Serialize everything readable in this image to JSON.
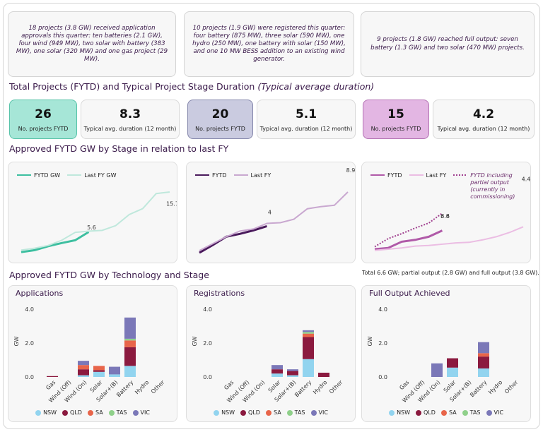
{
  "summary_cards": [
    "18 projects (3.8 GW) received application approvals this quarter: ten batteries (2.1 GW), four wind (949 MW), two solar with battery (383 MW), one solar (320 MW) and one gas project (29 MW).",
    "10 projects (1.9 GW) were registered this quarter: four battery (875 MW), three solar (590 MW), one hydro (250 MW), one battery with solar (150 MW), and one 10 MW BESS addition to an existing wind generator.",
    "9 projects (1.8 GW) reached full output: seven battery (1.3 GW) and two solar (470 MW) projects."
  ],
  "kpi_section": {
    "title": "Total Projects (FYTD) and Typical Project Stage Duration",
    "note": "(Typical average duration)"
  },
  "kpis": [
    {
      "count": 26,
      "count_label": "No. projects FYTD",
      "duration": 8.3,
      "duration_label": "Typical avg. duration (12 month)",
      "color": "#a6e6d7",
      "border": "#57c3a8"
    },
    {
      "count": 20,
      "count_label": "No. projects FYTD",
      "duration": 5.1,
      "duration_label": "Typical avg. duration (12 month)",
      "color": "#cacbe0",
      "border": "#8688ac"
    },
    {
      "count": 15,
      "count_label": "No. projects FYTD",
      "duration": 4.2,
      "duration_label": "Typical avg. duration (12 month)",
      "color": "#e3b6e3",
      "border": "#b472b4"
    }
  ],
  "stage_section_title": "Approved  FYTD GW by Stage in relation to last FY",
  "tech_section_title": "Approved  FYTD GW by Technology and Stage",
  "chart_data": [
    {
      "type": "line",
      "categories": [
        null,
        null,
        null,
        null,
        null,
        null,
        null,
        null,
        null,
        null,
        null,
        null
      ],
      "series": [
        {
          "name": "FYTD GW",
          "color": "#3dbfa0",
          "values": [
            0.5,
            1.0,
            2.0,
            2.8,
            3.5,
            5.6,
            null,
            null,
            null,
            null,
            null,
            null
          ]
        },
        {
          "name": "Last FY GW",
          "color": "#bfe8dc",
          "values": [
            1.0,
            1.5,
            2.2,
            3.5,
            5.5,
            5.8,
            6.0,
            7.2,
            10.0,
            11.5,
            15.3,
            15.7
          ]
        }
      ]
    },
    {
      "type": "line",
      "categories": [
        null,
        null,
        null,
        null,
        null,
        null,
        null,
        null,
        null,
        null,
        null,
        null
      ],
      "series": [
        {
          "name": "FYTD",
          "color": "#4a1a5c",
          "values": [
            0.2,
            1.3,
            2.5,
            2.9,
            3.4,
            4.0,
            null,
            null,
            null,
            null,
            null,
            null
          ]
        },
        {
          "name": "Last FY",
          "color": "#c9a8d0",
          "values": [
            0.5,
            1.5,
            2.5,
            3.3,
            3.6,
            4.4,
            4.5,
            5.0,
            6.5,
            6.8,
            7.0,
            8.9
          ]
        }
      ]
    },
    {
      "type": "line",
      "categories": [
        null,
        null,
        null,
        null,
        null,
        null,
        null,
        null,
        null,
        null,
        null,
        null
      ],
      "note": "Total 6.6 GW; partial output (2.8 GW) and full output (3.8 GW).",
      "series": [
        {
          "name": "FYTD",
          "color": "#b05aa8",
          "values": [
            0.8,
            1.0,
            2.0,
            2.3,
            2.8,
            3.8,
            null,
            null,
            null,
            null,
            null,
            null
          ]
        },
        {
          "name": "Last FY",
          "color": "#ebbde3",
          "values": [
            0.6,
            0.8,
            1.0,
            1.3,
            1.4,
            1.6,
            1.8,
            1.9,
            2.3,
            2.8,
            3.5,
            4.4
          ]
        },
        {
          "name": "FYTD  including partial output (currently in commissioning)",
          "color": "#a0408f",
          "line_style": "dotted",
          "values": [
            1.2,
            2.5,
            3.3,
            4.2,
            5.0,
            6.6,
            null,
            null,
            null,
            null,
            null,
            null
          ]
        }
      ]
    },
    {
      "type": "bar",
      "stacked": true,
      "title": "Applications",
      "ylabel": "GW",
      "categories": [
        "Gas",
        "Wind (Off)",
        "Wind (On)",
        "Solar",
        "Solar+(B)",
        "Battery",
        "Hydro",
        "Other"
      ],
      "ylim": [
        0,
        4.2
      ],
      "yticks": [
        {
          "value": 0,
          "label": "0.0"
        },
        {
          "value": 2,
          "label": "2.0"
        },
        {
          "value": 4,
          "label": "4.0"
        }
      ],
      "series": [
        {
          "name": "NSW",
          "color": "#92d4ef",
          "values": [
            0,
            0,
            0.1,
            0.3,
            0.15,
            0.65,
            0,
            0
          ]
        },
        {
          "name": "QLD",
          "color": "#8b1a3f",
          "values": [
            0.05,
            0,
            0.35,
            0.1,
            0,
            1.1,
            0,
            0
          ]
        },
        {
          "name": "SA",
          "color": "#e8654a",
          "values": [
            0,
            0,
            0.25,
            0.25,
            0,
            0.4,
            0,
            0
          ]
        },
        {
          "name": "TAS",
          "color": "#8fd08a",
          "values": [
            0,
            0,
            0,
            0,
            0,
            0.1,
            0,
            0
          ]
        },
        {
          "name": "VIC",
          "color": "#7b78b8",
          "values": [
            0,
            0,
            0.25,
            0,
            0.45,
            1.25,
            0,
            0
          ]
        }
      ]
    },
    {
      "type": "bar",
      "stacked": true,
      "title": "Registrations",
      "ylabel": "GW",
      "categories": [
        "Gas",
        "Wind (Off)",
        "Wind (On)",
        "Solar",
        "Solar+(B)",
        "Battery",
        "Hydro",
        "Other"
      ],
      "ylim": [
        0,
        4.2
      ],
      "yticks": [
        {
          "value": 0,
          "label": "0.0"
        },
        {
          "value": 2,
          "label": "2.0"
        },
        {
          "value": 4,
          "label": "4.0"
        }
      ],
      "series": [
        {
          "name": "NSW",
          "color": "#92d4ef",
          "values": [
            0,
            0,
            0,
            0.2,
            0.1,
            1.05,
            0,
            0
          ]
        },
        {
          "name": "QLD",
          "color": "#8b1a3f",
          "values": [
            0,
            0,
            0,
            0.25,
            0.25,
            1.3,
            0.25,
            0
          ]
        },
        {
          "name": "SA",
          "color": "#e8654a",
          "values": [
            0,
            0,
            0,
            0,
            0,
            0.2,
            0,
            0
          ]
        },
        {
          "name": "TAS",
          "color": "#8fd08a",
          "values": [
            0,
            0,
            0,
            0,
            0,
            0.1,
            0,
            0
          ]
        },
        {
          "name": "VIC",
          "color": "#7b78b8",
          "values": [
            0,
            0,
            0,
            0.25,
            0.1,
            0.1,
            0,
            0
          ]
        }
      ]
    },
    {
      "type": "bar",
      "stacked": true,
      "title": "Full Output Achieved",
      "ylabel": "GW",
      "categories": [
        "Gas",
        "Wind (Off)",
        "Wind (On)",
        "Solar",
        "Solar+(B)",
        "Battery",
        "Hydro",
        "Other"
      ],
      "ylim": [
        0,
        4.2
      ],
      "yticks": [
        {
          "value": 0,
          "label": "0.0"
        },
        {
          "value": 2,
          "label": "2.0"
        },
        {
          "value": 4,
          "label": "4.0"
        }
      ],
      "series": [
        {
          "name": "NSW",
          "color": "#92d4ef",
          "values": [
            0,
            0,
            0,
            0.55,
            0,
            0.5,
            0,
            0
          ]
        },
        {
          "name": "QLD",
          "color": "#8b1a3f",
          "values": [
            0,
            0,
            0,
            0.55,
            0,
            0.7,
            0,
            0
          ]
        },
        {
          "name": "SA",
          "color": "#e8654a",
          "values": [
            0,
            0,
            0,
            0,
            0,
            0.2,
            0,
            0
          ]
        },
        {
          "name": "TAS",
          "color": "#8fd08a",
          "values": [
            0,
            0,
            0,
            0,
            0,
            0,
            0,
            0
          ]
        },
        {
          "name": "VIC",
          "color": "#7b78b8",
          "values": [
            0,
            0,
            0.8,
            0,
            0,
            0.65,
            0,
            0
          ]
        }
      ]
    }
  ]
}
